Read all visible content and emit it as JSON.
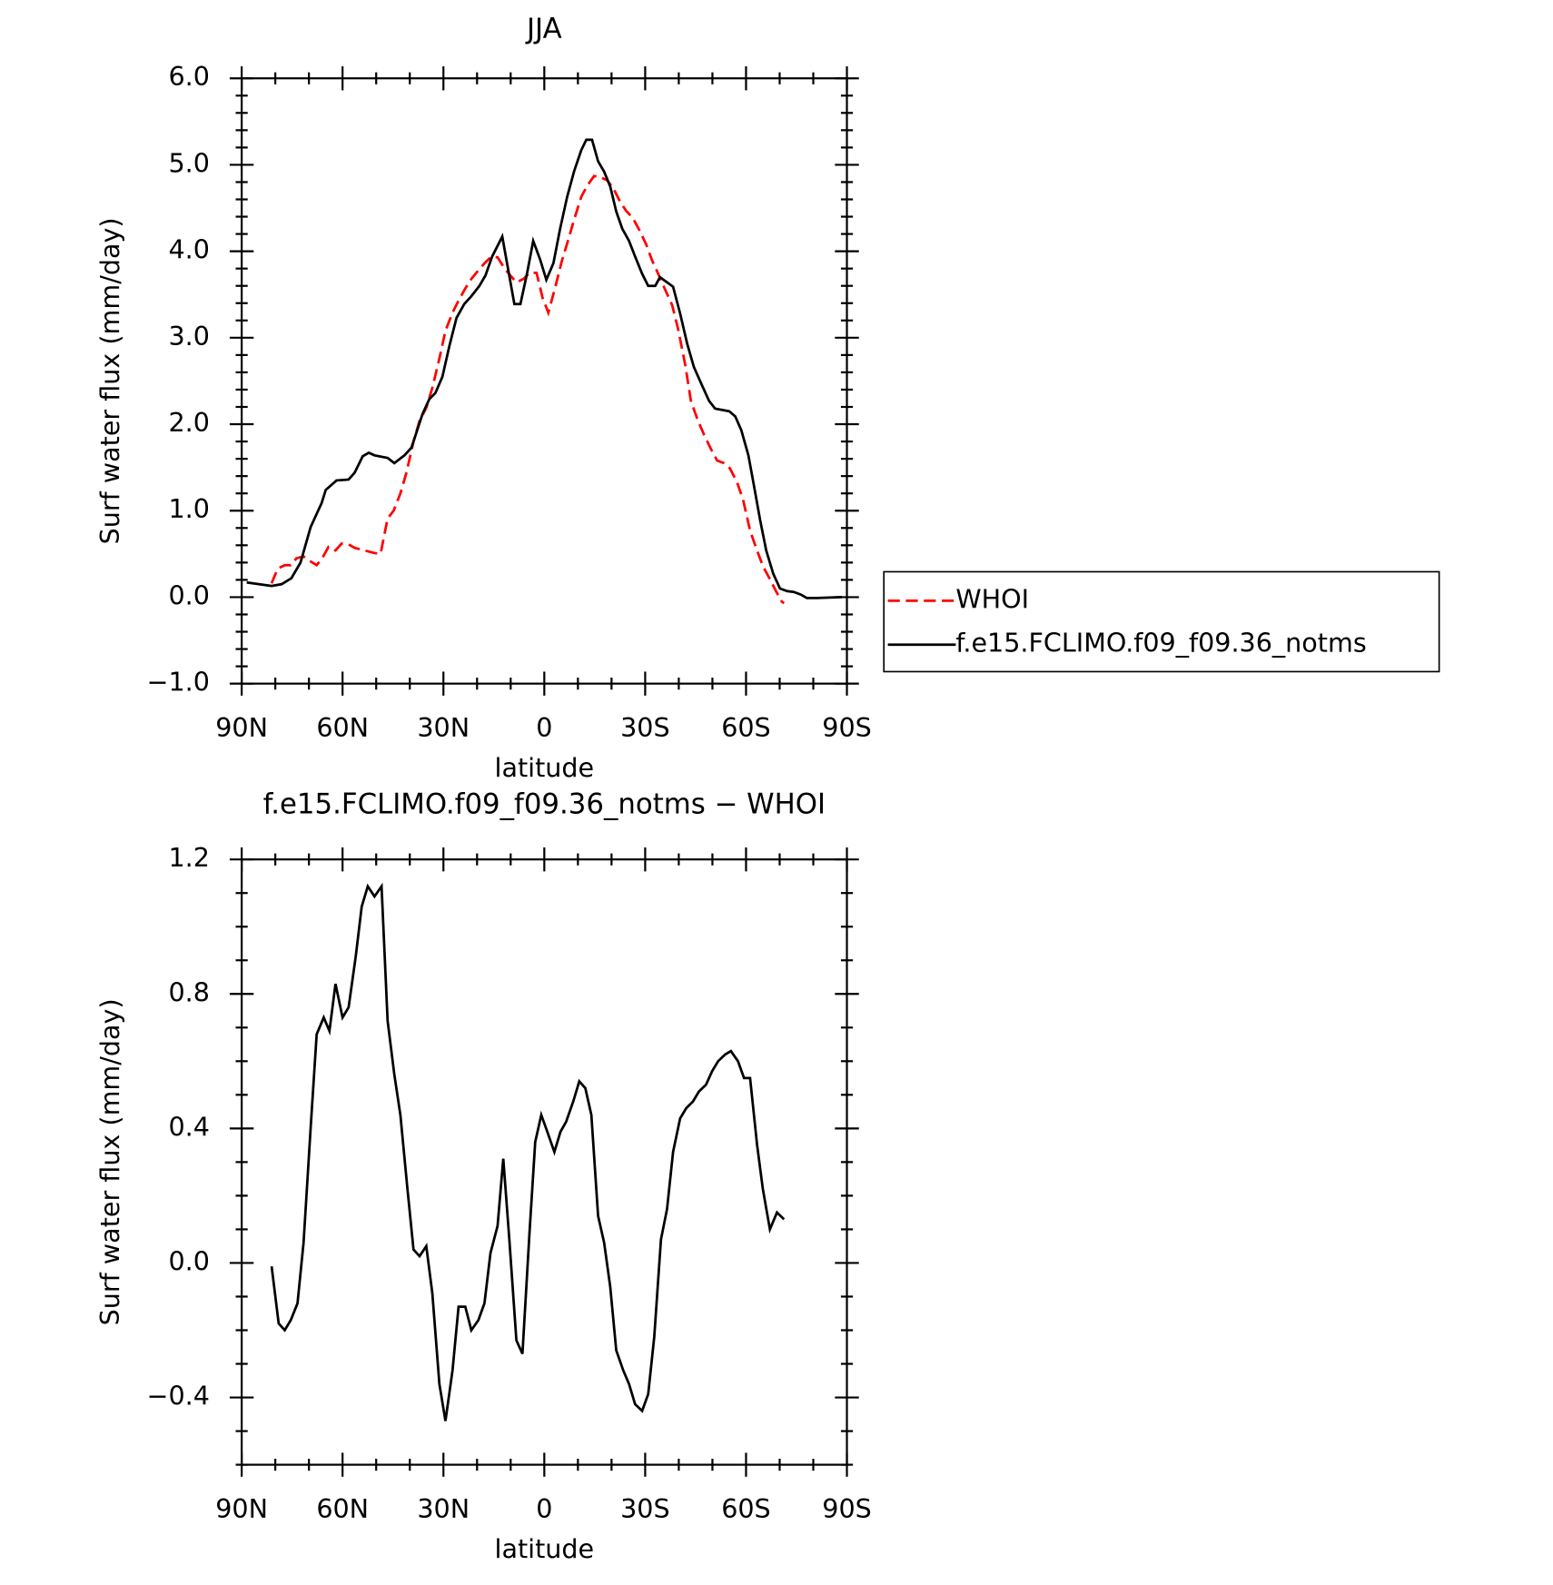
{
  "chart_data": [
    {
      "type": "line",
      "title": "JJA",
      "x_label": "latitude",
      "y_label": "Surf water flux (mm/day)",
      "xlim": [
        90,
        -90
      ],
      "xticks": [
        {
          "value": 90,
          "label": "90N"
        },
        {
          "value": 60,
          "label": "60N"
        },
        {
          "value": 30,
          "label": "30N"
        },
        0,
        {
          "value": -30,
          "label": "30S"
        },
        {
          "value": -60,
          "label": "60S"
        },
        {
          "value": -90,
          "label": "90S"
        }
      ],
      "ylim": [
        -1,
        6
      ],
      "yticks": [
        {
          "value": -1,
          "label": "−1.0"
        },
        {
          "value": 0,
          "label": "0.0"
        },
        {
          "value": 1,
          "label": "1.0"
        },
        {
          "value": 2,
          "label": "2.0"
        },
        {
          "value": 3,
          "label": "3.0"
        },
        {
          "value": 4,
          "label": "4.0"
        },
        {
          "value": 5,
          "label": "5.0"
        },
        {
          "value": 6,
          "label": "6.0"
        }
      ],
      "legend": "right",
      "series": [
        {
          "name": "WHOI",
          "color": "#ff0000",
          "dashed": true,
          "x": [
            81.1,
            79.3,
            77.2,
            75.4,
            73.7,
            71.6,
            69.8,
            67.7,
            65.9,
            64.2,
            62.1,
            60.3,
            58.2,
            56.4,
            54.3,
            52.5,
            50.5,
            48.7,
            46.6,
            44.8,
            42.8,
            41,
            38.9,
            37.1,
            35.1,
            33.3,
            31.2,
            29.4,
            27.3,
            25.5,
            23.5,
            21.7,
            19.6,
            17.8,
            15.7,
            13.9,
            11.8,
            10.1,
            8.3,
            6.2,
            4.4,
            2.3,
            0.5,
            -1.2,
            -3.3,
            -5.1,
            -7.1,
            -8.9,
            -11,
            -12.8,
            -14.8,
            -16.6,
            -18.7,
            -20.5,
            -22.6,
            -24.3,
            -26.4,
            -28.2,
            -30.3,
            -32.1,
            -34.1,
            -35.9,
            -38,
            -39.8,
            -41.9,
            -43.6,
            -45.7,
            -47.5,
            -49.6,
            -51.4,
            -53.4,
            -55.2,
            -57.3,
            -59.1,
            -61.2,
            -62.9,
            -65,
            -66.8,
            -68.9,
            -70.6,
            -71.3
          ],
          "values": [
            0.16,
            0.33,
            0.37,
            0.37,
            0.45,
            0.47,
            0.42,
            0.37,
            0.46,
            0.58,
            0.54,
            0.62,
            0.61,
            0.57,
            0.55,
            0.53,
            0.51,
            0.5,
            0.91,
            1.0,
            1.2,
            1.44,
            1.8,
            2.04,
            2.19,
            2.42,
            2.76,
            3.08,
            3.29,
            3.43,
            3.57,
            3.68,
            3.78,
            3.86,
            3.94,
            3.93,
            3.8,
            3.72,
            3.64,
            3.68,
            3.75,
            3.75,
            3.46,
            3.29,
            3.59,
            3.87,
            4.13,
            4.37,
            4.63,
            4.76,
            4.87,
            4.86,
            4.82,
            4.73,
            4.57,
            4.47,
            4.38,
            4.25,
            4.08,
            3.89,
            3.72,
            3.56,
            3.38,
            3.1,
            2.69,
            2.27,
            2.04,
            1.88,
            1.71,
            1.58,
            1.55,
            1.49,
            1.33,
            1.13,
            0.77,
            0.58,
            0.36,
            0.23,
            0.07,
            -0.05,
            -0.07
          ]
        },
        {
          "name": "f.e15.FCLIMO.f09_f09.36_notms",
          "color": "#000000",
          "dashed": false,
          "x": [
            88.5,
            81.1,
            78.1,
            75.2,
            72.5,
            69.5,
            66.2,
            65,
            61.8,
            58.2,
            56.4,
            54,
            52.2,
            50.5,
            46.6,
            44.6,
            41.6,
            39.5,
            36.2,
            34.2,
            32.4,
            30.3,
            28.2,
            26.1,
            23.8,
            21.7,
            19.3,
            17.5,
            15.5,
            12.5,
            8.9,
            7.1,
            5.1,
            3.3,
            1.2,
            -0.6,
            -2.7,
            -4.7,
            -6.8,
            -8.9,
            -11,
            -12.5,
            -14.2,
            -16,
            -17.8,
            -19.6,
            -21.4,
            -23.2,
            -25.2,
            -27,
            -29.1,
            -30.9,
            -33,
            -34.4,
            -36.2,
            -38.3,
            -40.4,
            -42.5,
            -44.5,
            -46.9,
            -49,
            -50.8,
            -55,
            -56.8,
            -58.6,
            -60.7,
            -62.4,
            -64.2,
            -66,
            -68.1,
            -70.1,
            -72.2,
            -74.2,
            -76.3,
            -78.1,
            -81.1,
            -88.5
          ],
          "values": [
            0.17,
            0.13,
            0.15,
            0.22,
            0.4,
            0.81,
            1.09,
            1.24,
            1.35,
            1.36,
            1.44,
            1.63,
            1.67,
            1.64,
            1.61,
            1.55,
            1.64,
            1.73,
            2.12,
            2.29,
            2.36,
            2.55,
            2.91,
            3.23,
            3.39,
            3.48,
            3.6,
            3.72,
            3.94,
            4.17,
            3.39,
            3.39,
            3.75,
            4.12,
            3.9,
            3.67,
            3.86,
            4.26,
            4.63,
            4.93,
            5.17,
            5.29,
            5.29,
            5.04,
            4.92,
            4.75,
            4.46,
            4.26,
            4.12,
            3.94,
            3.74,
            3.6,
            3.6,
            3.7,
            3.65,
            3.59,
            3.28,
            2.93,
            2.66,
            2.45,
            2.27,
            2.18,
            2.15,
            2.09,
            1.93,
            1.64,
            1.28,
            0.89,
            0.54,
            0.27,
            0.1,
            0.07,
            0.06,
            0.03,
            -0.01,
            -0.01,
            0.0
          ]
        }
      ]
    },
    {
      "type": "line",
      "title": "f.e15.FCLIMO.f09_f09.36_notms − WHOI",
      "x_label": "latitude",
      "y_label": "Surf water flux (mm/day)",
      "xlim": [
        90,
        -90
      ],
      "xticks": [
        {
          "value": 90,
          "label": "90N"
        },
        {
          "value": 60,
          "label": "60N"
        },
        {
          "value": 30,
          "label": "30N"
        },
        0,
        {
          "value": -30,
          "label": "30S"
        },
        {
          "value": -60,
          "label": "60S"
        },
        {
          "value": -90,
          "label": "90S"
        }
      ],
      "ylim": [
        -0.6,
        1.2
      ],
      "yticks": [
        {
          "value": -0.4,
          "label": "−0.4"
        },
        {
          "value": 0,
          "label": "0.0"
        },
        0.4,
        0.8,
        1.2
      ],
      "series": [
        {
          "color": "#000000",
          "dashed": false,
          "x": [
            81.1,
            79,
            77.2,
            75.4,
            73.4,
            71.6,
            69.5,
            67.7,
            65.6,
            63.9,
            62.1,
            60,
            58.2,
            56.1,
            54.3,
            52.5,
            50.5,
            48.4,
            46.6,
            44.6,
            42.8,
            40.7,
            38.9,
            37.1,
            35.1,
            33.3,
            31.2,
            29.4,
            27.3,
            25.5,
            23.5,
            21.7,
            19.6,
            17.8,
            16,
            13.9,
            12.2,
            10.4,
            8.3,
            6.5,
            4.4,
            2.7,
            0.9,
            -0.9,
            -3,
            -4.8,
            -6.5,
            -8.6,
            -10.4,
            -12.2,
            -14,
            -16,
            -17.8,
            -19.6,
            -21.4,
            -23.5,
            -25.2,
            -27,
            -29.1,
            -30.9,
            -32.7,
            -34.7,
            -36.5,
            -38.3,
            -40.4,
            -42.2,
            -44.2,
            -46,
            -48.1,
            -49.9,
            -51.7,
            -53.8,
            -55.5,
            -57.6,
            -59.4,
            -61.2,
            -63.3,
            -65,
            -67.1,
            -69.2,
            -71.3
          ],
          "values": [
            -0.01,
            -0.18,
            -0.2,
            -0.17,
            -0.12,
            0.06,
            0.4,
            0.68,
            0.73,
            0.69,
            0.83,
            0.73,
            0.76,
            0.91,
            1.06,
            1.12,
            1.09,
            1.12,
            0.72,
            0.56,
            0.44,
            0.22,
            0.04,
            0.02,
            0.05,
            -0.09,
            -0.36,
            -0.47,
            -0.32,
            -0.13,
            -0.13,
            -0.2,
            -0.17,
            -0.12,
            0.03,
            0.11,
            0.31,
            0.07,
            -0.23,
            -0.27,
            0.09,
            0.36,
            0.44,
            0.39,
            0.33,
            0.39,
            0.42,
            0.48,
            0.54,
            0.52,
            0.44,
            0.14,
            0.06,
            -0.07,
            -0.26,
            -0.32,
            -0.36,
            -0.42,
            -0.44,
            -0.39,
            -0.22,
            0.07,
            0.16,
            0.33,
            0.43,
            0.46,
            0.48,
            0.51,
            0.53,
            0.57,
            0.6,
            0.62,
            0.63,
            0.6,
            0.55,
            0.55,
            0.35,
            0.22,
            0.1,
            0.15,
            0.13
          ]
        }
      ]
    }
  ]
}
